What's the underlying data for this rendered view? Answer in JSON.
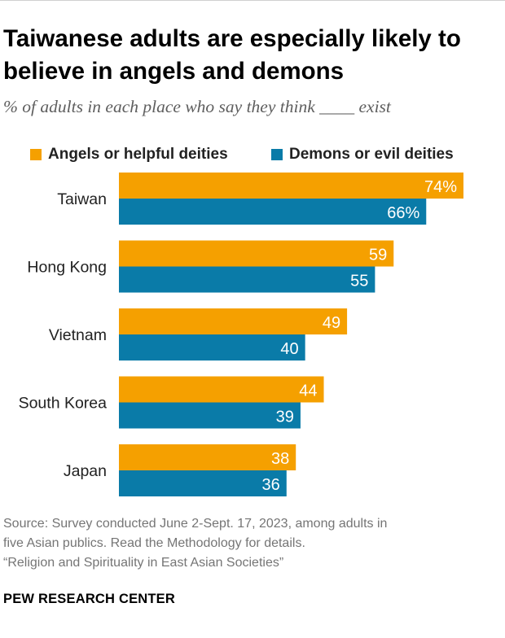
{
  "title": "Taiwanese adults are especially likely to believe in angels and demons",
  "subtitle": "% of adults in each place who say they think ____ exist",
  "colors": {
    "angels": "#f5a000",
    "demons": "#0a7ba8"
  },
  "chart_data": {
    "type": "bar",
    "orientation": "horizontal",
    "categories": [
      "Taiwan",
      "Hong Kong",
      "Vietnam",
      "South Korea",
      "Japan"
    ],
    "series": [
      {
        "name": "Angels or helpful deities",
        "values": [
          74,
          59,
          49,
          44,
          38
        ],
        "labels": [
          "74%",
          "59",
          "49",
          "44",
          "38"
        ]
      },
      {
        "name": "Demons or evil deities",
        "values": [
          66,
          55,
          40,
          39,
          36
        ],
        "labels": [
          "66%",
          "55",
          "40",
          "39",
          "36"
        ]
      }
    ],
    "xlim": [
      0,
      74
    ],
    "grid": false,
    "legend": "top"
  },
  "footer": {
    "source_line1": "Source: Survey conducted June 2-Sept. 17, 2023, among adults in",
    "source_line2": "five Asian publics. Read the Methodology for details.",
    "report": "“Religion and Spirituality in East Asian Societies”",
    "brand": "PEW RESEARCH CENTER"
  }
}
